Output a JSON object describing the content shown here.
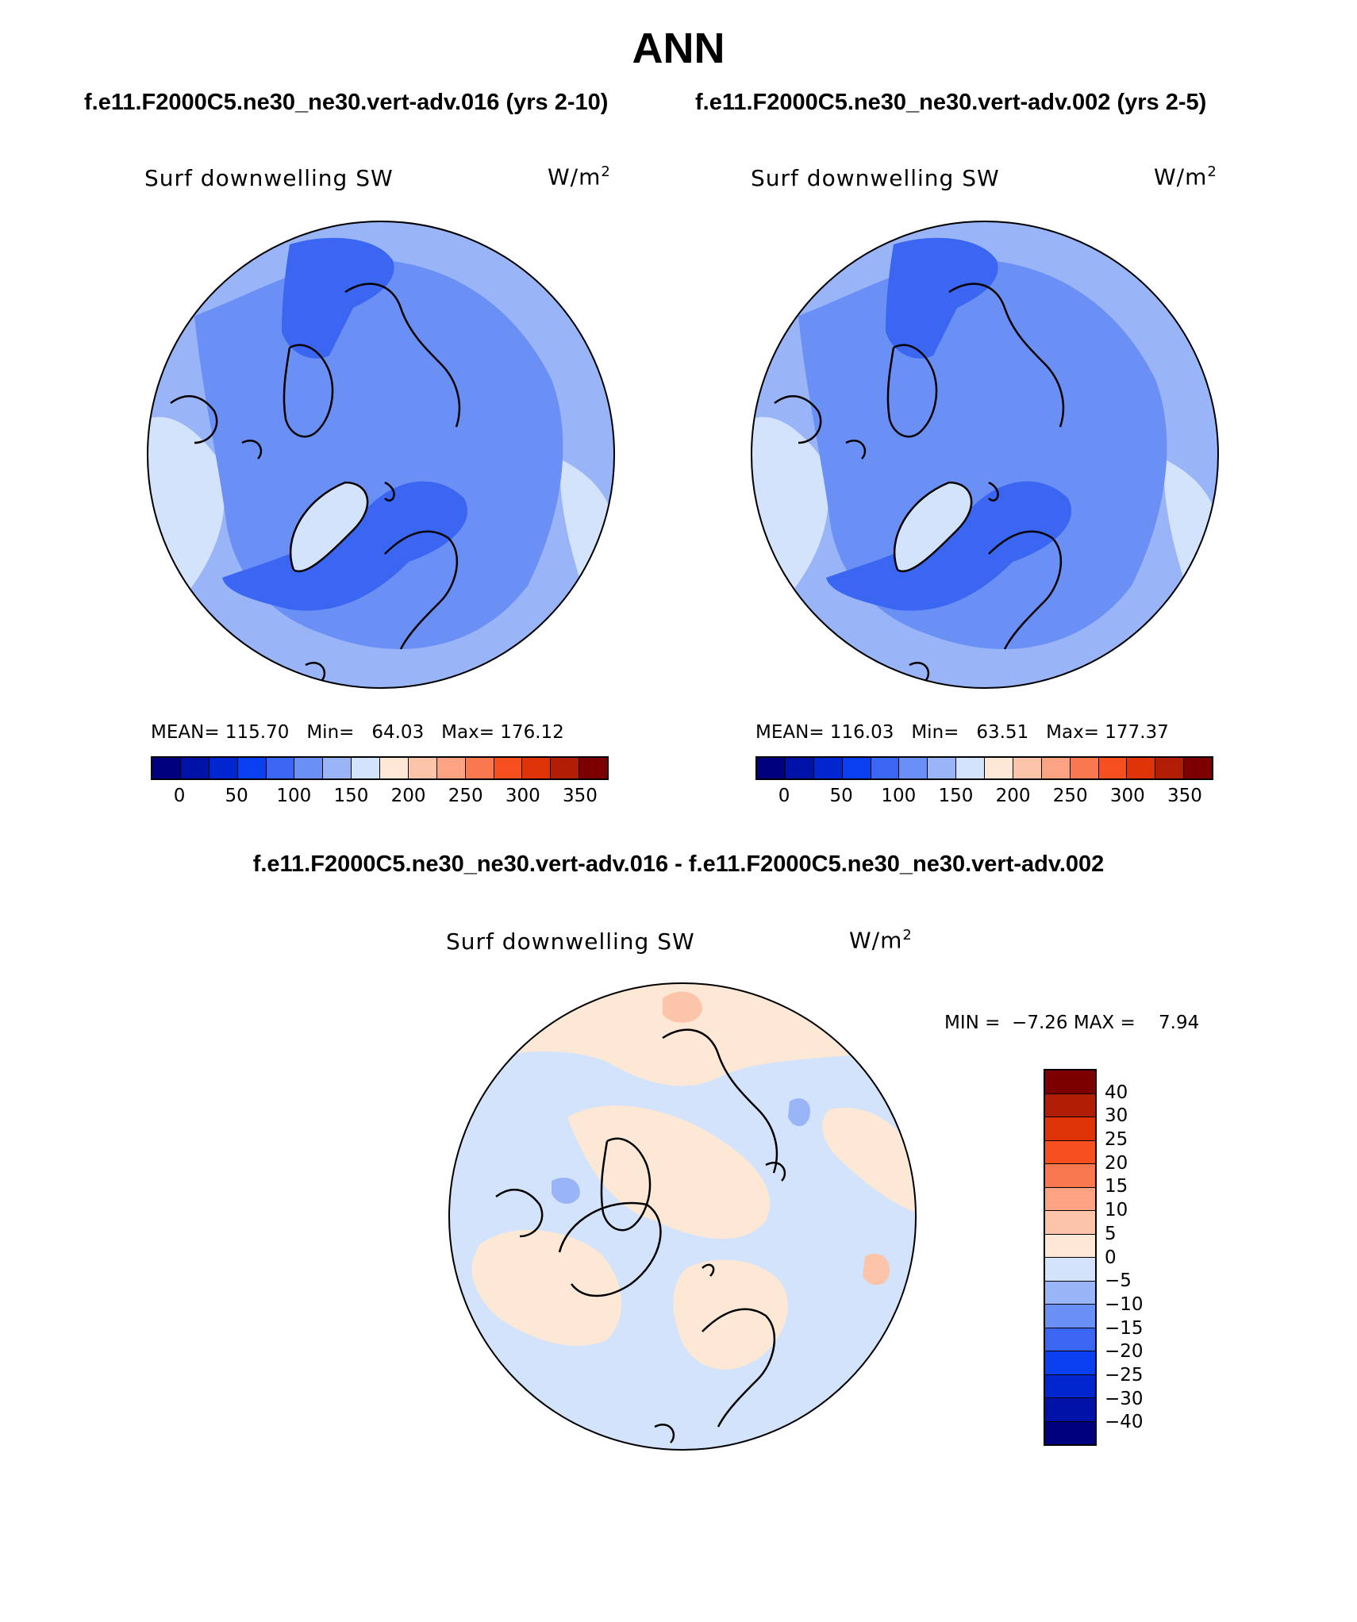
{
  "title": "ANN",
  "panels": [
    {
      "case": "f.e11.F2000C5.ne30_ne30.vert-adv.016 (yrs 2-10)",
      "variable": "Surf downwelling SW",
      "units_base": "W/m",
      "units_exp": "2",
      "stats": {
        "mean_label": "MEAN=",
        "mean": "115.70",
        "min_label": "Min=",
        "min": "64.03",
        "max_label": "Max=",
        "max": "176.12"
      }
    },
    {
      "case": "f.e11.F2000C5.ne30_ne30.vert-adv.002 (yrs 2-5)",
      "variable": "Surf downwelling SW",
      "units_base": "W/m",
      "units_exp": "2",
      "stats": {
        "mean_label": "MEAN=",
        "mean": "116.03",
        "min_label": "Min=",
        "min": "63.51",
        "max_label": "Max=",
        "max": "177.37"
      }
    }
  ],
  "abs_colorbar": {
    "colors": [
      "#00007f",
      "#0012a8",
      "#0027cf",
      "#0b40f0",
      "#3a66f2",
      "#6a8ff5",
      "#9ab5f7",
      "#d2e3fb",
      "#fde8d6",
      "#fcc4a8",
      "#fca383",
      "#f9784f",
      "#f6501f",
      "#de3407",
      "#b11e05",
      "#7c0000"
    ],
    "tick_labels": [
      "0",
      "50",
      "100",
      "150",
      "200",
      "250",
      "300",
      "350"
    ]
  },
  "diff_panel": {
    "title": "f.e11.F2000C5.ne30_ne30.vert-adv.016 - f.e11.F2000C5.ne30_ne30.vert-adv.002",
    "variable": "Surf downwelling SW",
    "units_base": "W/m",
    "units_exp": "2",
    "stats": {
      "min_label": "MIN =",
      "min": "−7.26",
      "max_label": "MAX =",
      "max": "7.94"
    }
  },
  "diff_colorbar": {
    "colors_top_to_bottom": [
      "#7c0000",
      "#b11e05",
      "#de3407",
      "#f6501f",
      "#f9784f",
      "#fca383",
      "#fcc4a8",
      "#fde8d6",
      "#d2e3fb",
      "#9ab5f7",
      "#6a8ff5",
      "#3a66f2",
      "#0b40f0",
      "#0027cf",
      "#0012a8",
      "#00007f"
    ],
    "tick_labels_top_to_bottom": [
      "40",
      "30",
      "25",
      "20",
      "15",
      "10",
      "5",
      "0",
      "−5",
      "−10",
      "−15",
      "−20",
      "−25",
      "−30",
      "−40"
    ]
  },
  "map_colors": {
    "level_1": "#3a66f2",
    "level_2": "#6a8ff5",
    "level_3": "#9ab5f7",
    "level_4": "#d2e3fb",
    "diff_pos": "#fde8d6",
    "diff_pos2": "#fcc4a8",
    "diff_neg": "#d2e3fb",
    "diff_neg2": "#9ab5f7",
    "coast": "#000000"
  }
}
